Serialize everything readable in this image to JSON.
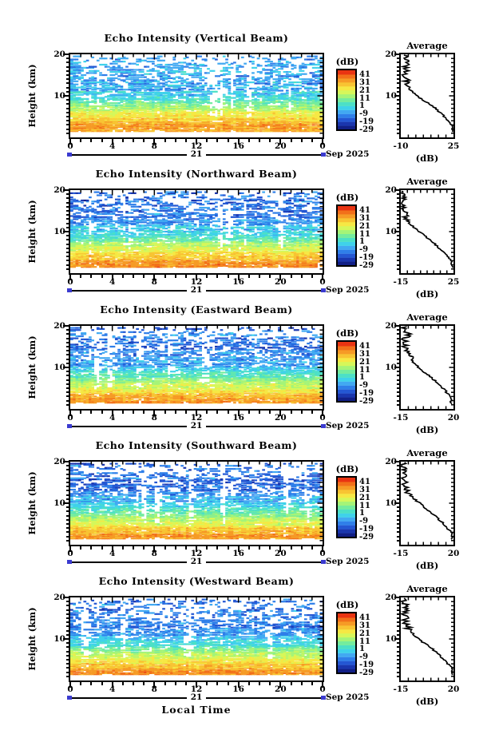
{
  "chart_data": {
    "type": "heatmap",
    "description": "Five time-height echo-intensity panels (radar beams) with shared colorbar scale and per-panel average dB profile",
    "axes": {
      "x_label": "Local Time",
      "x_tick_labels": [
        "0",
        "4",
        "8",
        "12",
        "16",
        "20",
        "0"
      ],
      "x_hours_range": [
        0,
        24
      ],
      "y_label": "Height (km)",
      "y_tick_labels": [
        "20",
        "10"
      ],
      "y_km_range": [
        0,
        20
      ],
      "date_label": "21",
      "date_caption": "Sep 2025"
    },
    "colorbar": {
      "title": "(dB)",
      "tick_labels": [
        "41",
        "31",
        "21",
        "11",
        "1",
        "-9",
        "-19",
        "-29"
      ],
      "tick_values": [
        41,
        31,
        21,
        11,
        1,
        -9,
        -19,
        -29
      ],
      "band_min": -29,
      "band_step": 5,
      "colors_bottom_to_top": [
        "#111f86",
        "#1a36ae",
        "#2457d3",
        "#2f7fe9",
        "#41a9f2",
        "#3fd2ea",
        "#4ce0c6",
        "#74ec9e",
        "#a5f478",
        "#d6f75a",
        "#f6e844",
        "#f8c433",
        "#f69b26",
        "#f2701a",
        "#e93412"
      ]
    },
    "average": {
      "title": "Average",
      "x_label": "(dB)"
    },
    "panels": [
      {
        "title": "Echo Intensity (Vertical Beam)",
        "avg_min": -10,
        "avg_max": 25,
        "avg_min_label": "-10",
        "avg_max_label": "25",
        "profile_km": [
          2,
          3,
          4,
          5,
          6,
          7,
          8,
          9,
          10,
          11,
          12,
          13,
          14,
          15,
          16,
          17,
          18,
          19,
          20
        ],
        "profile_db": [
          24.5,
          24,
          21.5,
          19,
          16,
          13,
          9.5,
          4.5,
          0.5,
          -2.5,
          -5,
          -6.5,
          -6,
          -7.5,
          -5.5,
          -7.5,
          -6,
          -8,
          -7
        ],
        "texture_seed": 11,
        "heat_boost": 9
      },
      {
        "title": "Echo Intensity (Northward Beam)",
        "avg_min": -15,
        "avg_max": 25,
        "avg_min_label": "-15",
        "avg_max_label": "25",
        "profile_km": [
          2,
          3,
          4,
          5,
          6,
          7,
          8,
          9,
          10,
          11,
          12,
          13,
          14,
          15,
          16,
          17,
          18,
          19,
          20
        ],
        "profile_db": [
          24,
          23,
          20.5,
          17.5,
          14,
          11,
          7,
          3,
          -1,
          -5,
          -8,
          -10,
          -11.5,
          -12.5,
          -13,
          -13.5,
          -13,
          -14,
          -13.5
        ],
        "texture_seed": 23,
        "heat_boost": 10
      },
      {
        "title": "Echo Intensity (Eastward Beam)",
        "avg_min": -15,
        "avg_max": 20,
        "avg_min_label": "-15",
        "avg_max_label": "20",
        "profile_km": [
          2,
          3,
          4,
          5,
          6,
          7,
          8,
          9,
          10,
          11,
          12,
          13,
          14,
          15,
          16,
          17,
          18,
          19,
          20
        ],
        "profile_db": [
          18.5,
          18,
          15.5,
          13,
          10,
          7,
          3.5,
          0,
          -3,
          -6,
          -8,
          -9.5,
          -11,
          -12,
          -12,
          -12.5,
          -9.5,
          -13.5,
          -12.5
        ],
        "texture_seed": 37,
        "heat_boost": 14
      },
      {
        "title": "Echo Intensity (Southward Beam)",
        "avg_min": -15,
        "avg_max": 20,
        "avg_min_label": "-15",
        "avg_max_label": "20",
        "profile_km": [
          2,
          3,
          4,
          5,
          6,
          7,
          8,
          9,
          10,
          11,
          12,
          13,
          14,
          15,
          16,
          17,
          18,
          19,
          20
        ],
        "profile_db": [
          19,
          18.5,
          16,
          13.5,
          10.5,
          7.5,
          4,
          1,
          -2.5,
          -6,
          -9,
          -11,
          -12,
          -12.5,
          -13,
          -13.5,
          -13,
          -14,
          -13.5
        ],
        "texture_seed": 49,
        "heat_boost": 14
      },
      {
        "title": "Echo Intensity (Westward Beam)",
        "avg_min": -15,
        "avg_max": 20,
        "avg_min_label": "-15",
        "avg_max_label": "20",
        "profile_km": [
          2,
          3,
          4,
          5,
          6,
          7,
          8,
          9,
          10,
          11,
          12,
          13,
          14,
          15,
          16,
          17,
          18,
          19,
          20
        ],
        "profile_db": [
          19.5,
          19,
          16.5,
          14,
          11,
          8,
          4.5,
          0.5,
          -3,
          -6,
          -9,
          -10.5,
          -11.5,
          -12,
          -12.5,
          -12,
          -11,
          -13.5,
          -12.5
        ],
        "texture_seed": 61,
        "heat_boost": 14
      }
    ]
  }
}
